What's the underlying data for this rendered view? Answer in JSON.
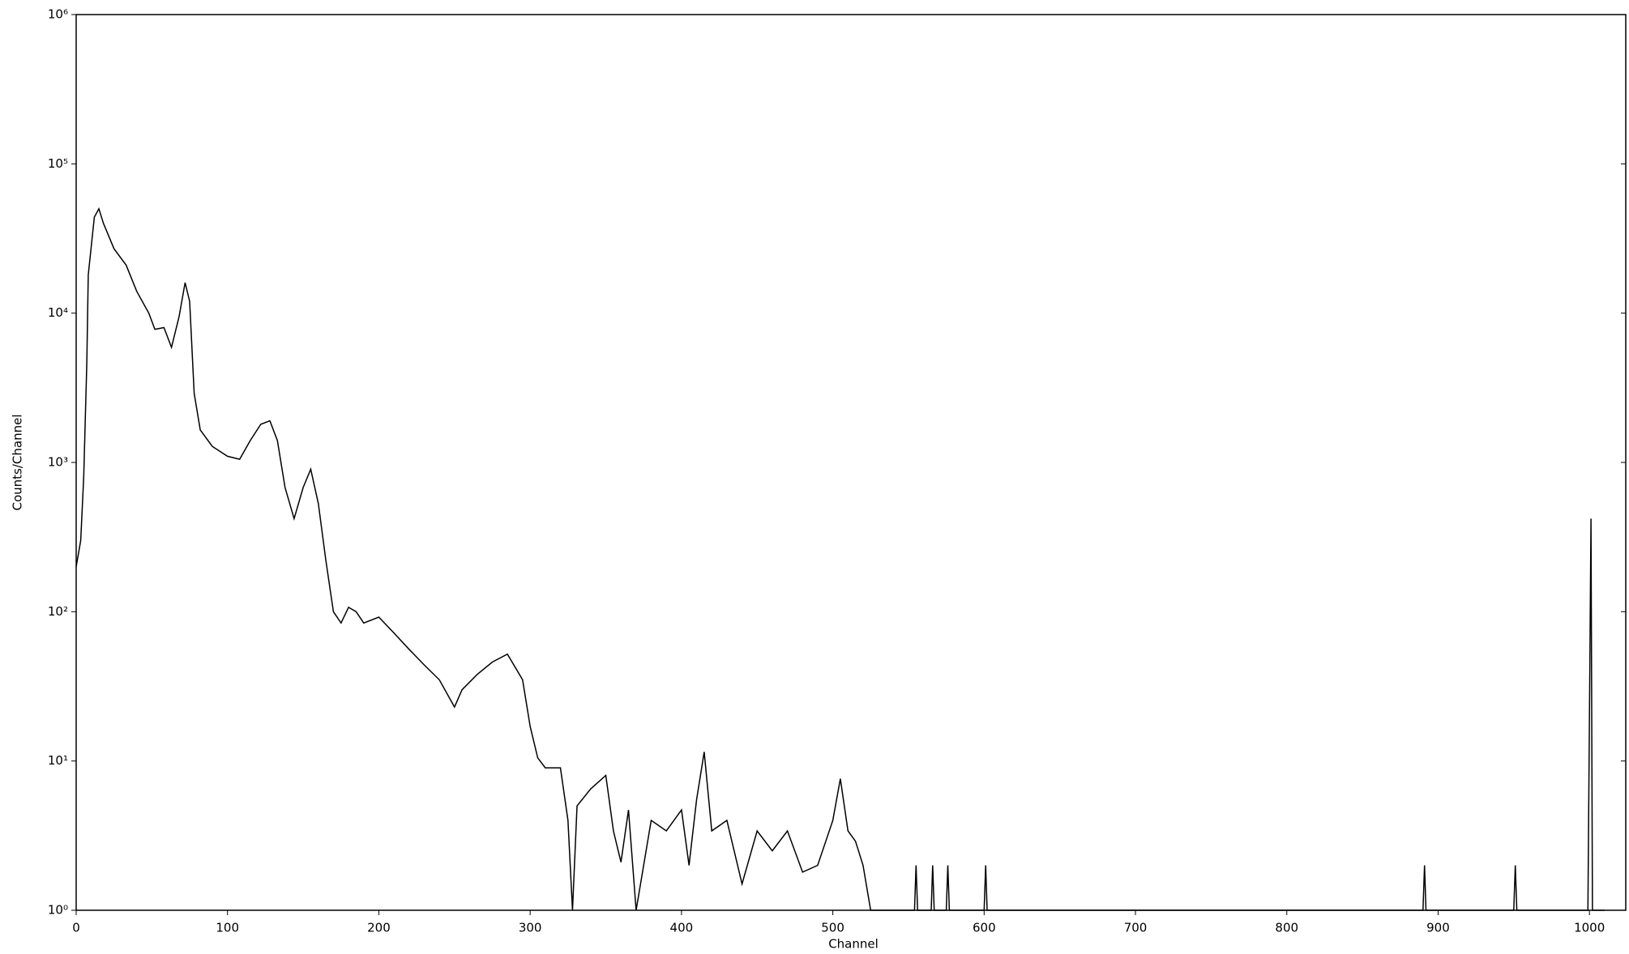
{
  "chart_data": {
    "type": "line",
    "x_label": "Channel",
    "y_label": "Counts/Channel",
    "log_y": true,
    "color": "#000000",
    "xlim": [
      0,
      1024
    ],
    "ylim": [
      1,
      1000000
    ],
    "xticks": [
      0,
      100,
      200,
      300,
      400,
      500,
      600,
      700,
      800,
      900,
      1000
    ],
    "yticks": [
      {
        "value": 1,
        "label": "10⁰"
      },
      {
        "value": 10,
        "label": "10¹"
      },
      {
        "value": 100,
        "label": "10²"
      },
      {
        "value": 1000,
        "label": "10³"
      },
      {
        "value": 10000,
        "label": "10⁴"
      },
      {
        "value": 100000,
        "label": "10⁵"
      },
      {
        "value": 1000000,
        "label": "10⁶"
      }
    ],
    "x": [
      0,
      3,
      5,
      7,
      8,
      12,
      15,
      18,
      25,
      33,
      40,
      48,
      52,
      58,
      63,
      68,
      72,
      75,
      78,
      82,
      90,
      100,
      108,
      115,
      122,
      128,
      133,
      138,
      144,
      150,
      155,
      160,
      165,
      170,
      175,
      180,
      185,
      190,
      200,
      210,
      220,
      230,
      240,
      250,
      255,
      265,
      275,
      285,
      295,
      300,
      305,
      310,
      320,
      325,
      328,
      331,
      340,
      350,
      355,
      360,
      365,
      370,
      380,
      390,
      400,
      405,
      410,
      415,
      420,
      430,
      440,
      450,
      460,
      470,
      480,
      490,
      500,
      505,
      510,
      515,
      520,
      525,
      554,
      555,
      556,
      565,
      566,
      567,
      575,
      576,
      577,
      600,
      601,
      602,
      700,
      890,
      891,
      892,
      950,
      951,
      952,
      999,
      1000,
      1001,
      1002,
      1010
    ],
    "values": [
      200,
      300,
      800,
      4600,
      18000,
      44000,
      50000,
      40000,
      27000,
      21000,
      14000,
      10000,
      7800,
      8000,
      5900,
      9500,
      16000,
      12000,
      2900,
      1650,
      1280,
      1100,
      1050,
      1400,
      1800,
      1900,
      1400,
      680,
      420,
      680,
      900,
      530,
      220,
      100,
      84,
      107,
      100,
      84,
      92,
      72,
      56,
      44,
      35,
      23,
      30,
      38,
      46,
      52,
      35,
      17,
      10.5,
      9,
      9,
      4,
      1,
      5,
      6.5,
      8,
      3.4,
      2.1,
      4.7,
      1,
      4,
      3.4,
      4.7,
      2,
      5.5,
      11.5,
      3.4,
      4,
      1.5,
      3.4,
      2.5,
      3.4,
      1.8,
      2,
      4,
      7.6,
      3.4,
      2.9,
      2,
      1,
      1,
      2,
      1,
      1,
      2,
      1,
      1,
      2,
      1,
      1,
      2,
      1,
      1,
      1,
      2,
      1,
      1,
      2,
      1,
      1,
      20,
      420,
      1,
      1
    ]
  }
}
